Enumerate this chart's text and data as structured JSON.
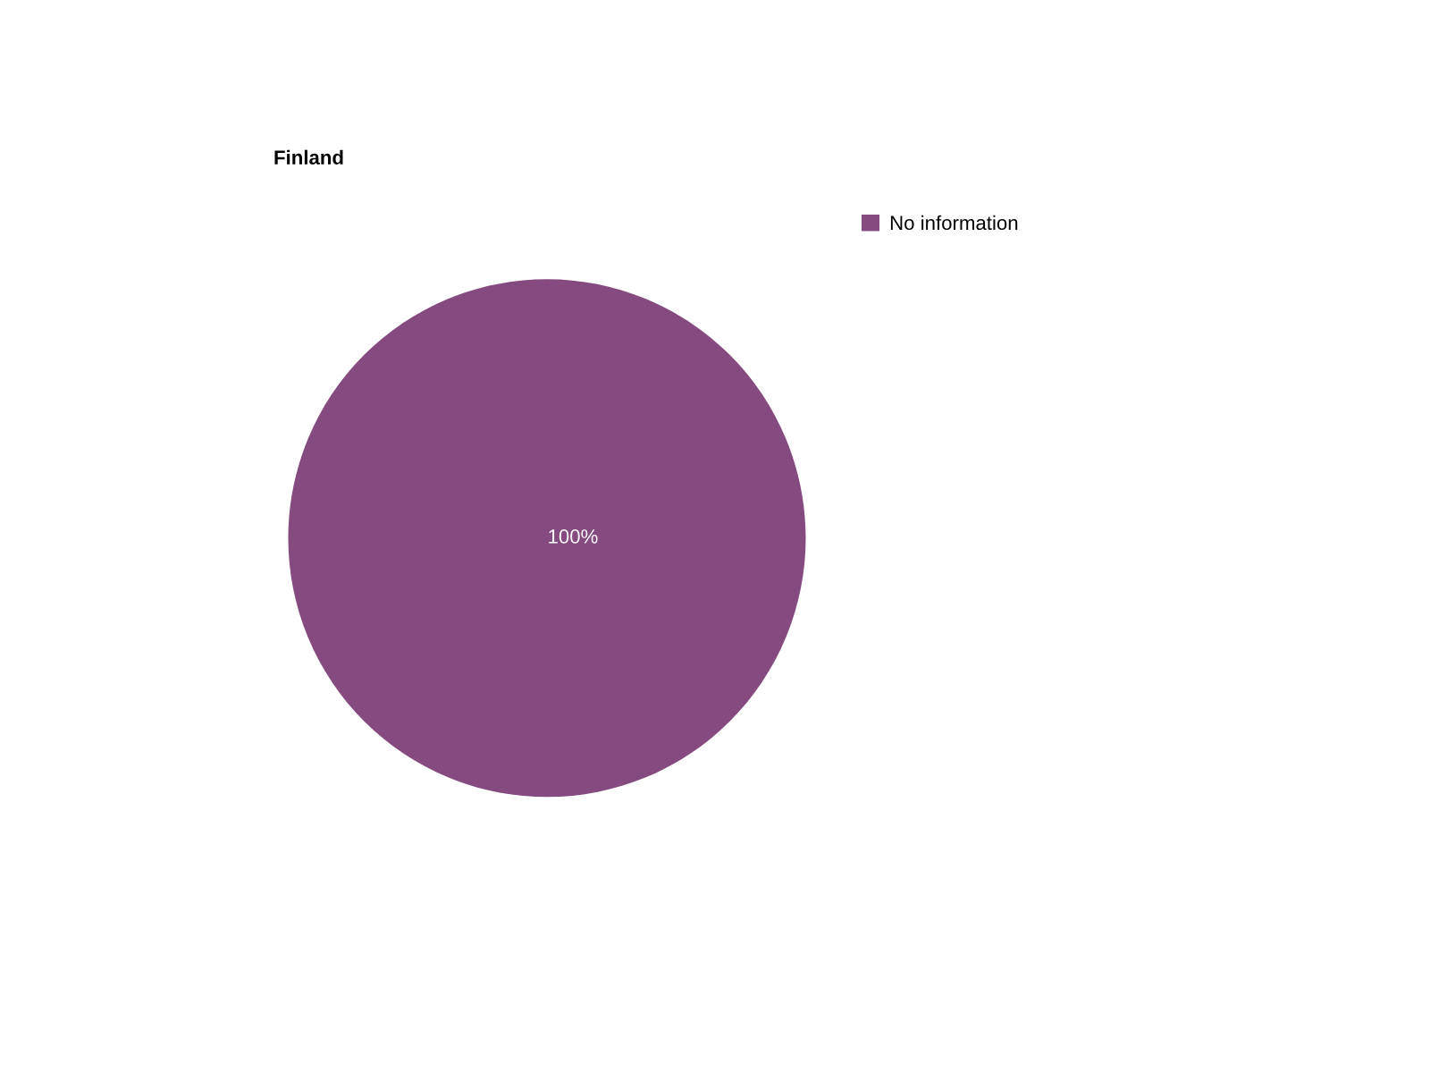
{
  "chart_data": {
    "type": "pie",
    "title": "Finland",
    "categories": [
      "No information"
    ],
    "values": [
      100
    ],
    "colors": [
      "#854a80"
    ],
    "value_labels": [
      "100%"
    ],
    "legend": "top right"
  }
}
